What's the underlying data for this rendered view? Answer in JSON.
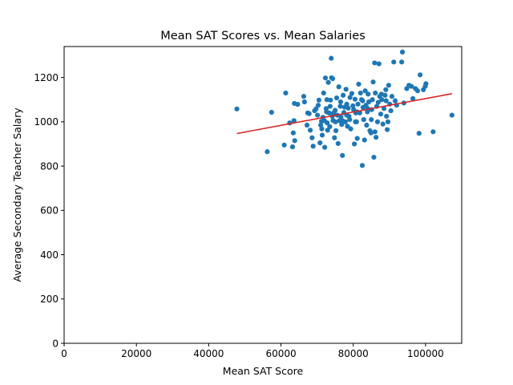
{
  "chart_data": {
    "type": "scatter",
    "title": "Mean SAT Scores vs. Mean Salaries",
    "xlabel": "Mean SAT Score",
    "ylabel": "Average Secondary Teacher Salary",
    "xlim": [
      0,
      110000
    ],
    "ylim": [
      0,
      1340
    ],
    "xticks": [
      0,
      20000,
      40000,
      60000,
      80000,
      100000
    ],
    "xtick_labels": [
      "0",
      "20000",
      "40000",
      "60000",
      "80000",
      "100000"
    ],
    "yticks": [
      0,
      200,
      400,
      600,
      800,
      1000,
      1200
    ],
    "ytick_labels": [
      "0",
      "200",
      "400",
      "600",
      "800",
      "1000",
      "1200"
    ],
    "grid": false,
    "colors": {
      "points": "#1f77b4",
      "fit_line": "#d62728"
    },
    "fit_line": {
      "x": [
        47800,
        107300
      ],
      "y": [
        947,
        1127
      ]
    },
    "points": [
      [
        47800,
        1058
      ],
      [
        56200,
        865
      ],
      [
        57400,
        1043
      ],
      [
        60900,
        895
      ],
      [
        61300,
        1130
      ],
      [
        62400,
        995
      ],
      [
        63200,
        887
      ],
      [
        63600,
        1005
      ],
      [
        63400,
        950
      ],
      [
        63800,
        915
      ],
      [
        63700,
        1083
      ],
      [
        64600,
        1079
      ],
      [
        66300,
        1115
      ],
      [
        66500,
        1090
      ],
      [
        67200,
        985
      ],
      [
        67400,
        1040
      ],
      [
        67800,
        1037
      ],
      [
        68100,
        962
      ],
      [
        68600,
        928
      ],
      [
        68900,
        890
      ],
      [
        69300,
        1050
      ],
      [
        69700,
        1058
      ],
      [
        70300,
        1075
      ],
      [
        70500,
        1098
      ],
      [
        70800,
        905
      ],
      [
        71000,
        985
      ],
      [
        71200,
        1002
      ],
      [
        71300,
        968
      ],
      [
        71400,
        940
      ],
      [
        71600,
        1020
      ],
      [
        71800,
        1130
      ],
      [
        72100,
        885
      ],
      [
        72300,
        1198
      ],
      [
        72500,
        1060
      ],
      [
        72700,
        1100
      ],
      [
        72800,
        995
      ],
      [
        72900,
        962
      ],
      [
        73100,
        1178
      ],
      [
        73300,
        1040
      ],
      [
        73500,
        978
      ],
      [
        73700,
        1098
      ],
      [
        73900,
        1287
      ],
      [
        74000,
        1199
      ],
      [
        74300,
        1195
      ],
      [
        74400,
        1006
      ],
      [
        74600,
        1040
      ],
      [
        74800,
        928
      ],
      [
        75000,
        1052
      ],
      [
        75200,
        960
      ],
      [
        75400,
        1108
      ],
      [
        75600,
        1030
      ],
      [
        75800,
        902
      ],
      [
        76000,
        1158
      ],
      [
        76200,
        1005
      ],
      [
        76400,
        1070
      ],
      [
        76600,
        1022
      ],
      [
        76800,
        988
      ],
      [
        77000,
        848
      ],
      [
        77200,
        1120
      ],
      [
        77400,
        1042
      ],
      [
        77600,
        1066
      ],
      [
        77800,
        1000
      ],
      [
        78000,
        1147
      ],
      [
        78200,
        1080
      ],
      [
        78400,
        980
      ],
      [
        78600,
        1062
      ],
      [
        78800,
        1025
      ],
      [
        79000,
        1010
      ],
      [
        79300,
        968
      ],
      [
        79600,
        1128
      ],
      [
        79900,
        1072
      ],
      [
        80100,
        1055
      ],
      [
        80300,
        900
      ],
      [
        80500,
        1102
      ],
      [
        80700,
        1040
      ],
      [
        80900,
        1000
      ],
      [
        81100,
        925
      ],
      [
        81300,
        1080
      ],
      [
        81500,
        1170
      ],
      [
        81800,
        1040
      ],
      [
        82000,
        1130
      ],
      [
        82300,
        1100
      ],
      [
        82500,
        803
      ],
      [
        82700,
        1065
      ],
      [
        82900,
        1010
      ],
      [
        83100,
        918
      ],
      [
        83300,
        1140
      ],
      [
        83500,
        1075
      ],
      [
        83700,
        985
      ],
      [
        83900,
        1045
      ],
      [
        84100,
        1125
      ],
      [
        84300,
        1090
      ],
      [
        84600,
        960
      ],
      [
        84900,
        950
      ],
      [
        85100,
        1055
      ],
      [
        85300,
        1100
      ],
      [
        85500,
        1180
      ],
      [
        85700,
        840
      ],
      [
        85900,
        1266
      ],
      [
        86100,
        1130
      ],
      [
        86300,
        930
      ],
      [
        86500,
        1070
      ],
      [
        86700,
        1000
      ],
      [
        86900,
        1088
      ],
      [
        87100,
        1262
      ],
      [
        87300,
        1115
      ],
      [
        87600,
        1035
      ],
      [
        87900,
        1100
      ],
      [
        88200,
        990
      ],
      [
        88500,
        1060
      ],
      [
        88800,
        1120
      ],
      [
        89000,
        1145
      ],
      [
        89200,
        1025
      ],
      [
        89400,
        965
      ],
      [
        89600,
        1000
      ],
      [
        89800,
        1165
      ],
      [
        90100,
        1080
      ],
      [
        90400,
        1050
      ],
      [
        90700,
        1115
      ],
      [
        91200,
        1270
      ],
      [
        91600,
        1095
      ],
      [
        92000,
        1075
      ],
      [
        93400,
        1270
      ],
      [
        93600,
        1315
      ],
      [
        94000,
        1085
      ],
      [
        94800,
        1150
      ],
      [
        95400,
        1165
      ],
      [
        96100,
        1160
      ],
      [
        96500,
        1105
      ],
      [
        97200,
        1150
      ],
      [
        97800,
        1140
      ],
      [
        98200,
        948
      ],
      [
        98500,
        1212
      ],
      [
        99400,
        1145
      ],
      [
        99900,
        1160
      ],
      [
        100100,
        1172
      ],
      [
        102100,
        955
      ],
      [
        107300,
        1030
      ],
      [
        84000,
        1060
      ],
      [
        82600,
        1095
      ],
      [
        80600,
        1000
      ],
      [
        79100,
        1110
      ],
      [
        76500,
        1090
      ],
      [
        75100,
        1000
      ],
      [
        73600,
        1070
      ],
      [
        72000,
        1005
      ],
      [
        70100,
        1030
      ],
      [
        85000,
        1010
      ],
      [
        86000,
        955
      ],
      [
        87800,
        1125
      ],
      [
        89100,
        1095
      ],
      [
        81000,
        1045
      ],
      [
        78200,
        1030
      ],
      [
        77000,
        1005
      ],
      [
        74200,
        1025
      ],
      [
        72600,
        1045
      ]
    ]
  }
}
